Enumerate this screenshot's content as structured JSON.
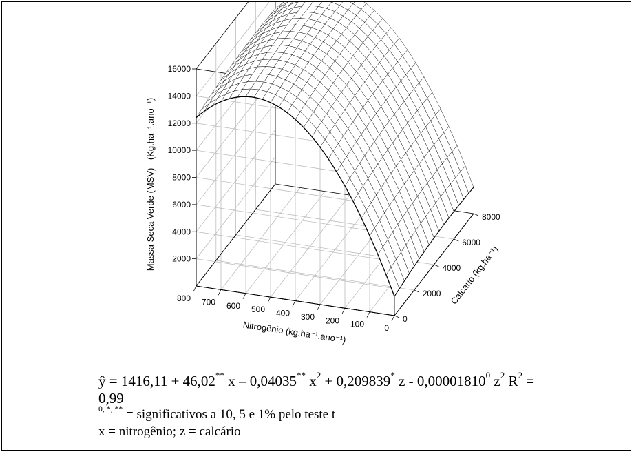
{
  "chart_data": {
    "type": "surface",
    "title": "",
    "zlabel": "Massa Seca Verde (MSV) - (Kg.ha⁻¹.ano⁻¹)",
    "xlabel": "Nitrogênio (kg.ha⁻¹.ano⁻¹)",
    "ylabel": "Calcário (kg.ha⁻¹)",
    "x_ticks": [
      "0",
      "100",
      "200",
      "300",
      "400",
      "500",
      "600",
      "700",
      "800"
    ],
    "y_ticks": [
      "0",
      "2000",
      "4000",
      "6000",
      "8000"
    ],
    "z_ticks": [
      "2000",
      "4000",
      "6000",
      "8000",
      "10000",
      "12000",
      "14000",
      "16000"
    ],
    "xlim": [
      0,
      800
    ],
    "ylim": [
      0,
      8000
    ],
    "zlim": [
      0,
      16000
    ],
    "grid": true,
    "model": {
      "intercept": 1416.11,
      "x": 46.02,
      "x2": -0.04035,
      "z": 0.209839,
      "z2": -1.81e-05
    }
  },
  "caption": {
    "eq_prefix": "ŷ = 1416,11 + 46,02",
    "sup_a": "**",
    "eq_x_term": " x – 0,04035",
    "sup_b": "**",
    "eq_x2": " x",
    "sup_c": "2",
    "eq_z_term": " + 0,209839",
    "sup_d": "*",
    "eq_z": " z - 0,00001810",
    "sup_e": "0",
    "eq_z2": " z",
    "sup_f": "2",
    "eq_r": " R",
    "sup_g": "2",
    "eq_eq": " =",
    "eq_r2_value": "0,99",
    "sig_sup": "0, *, **",
    "sig_text": " = significativos a 10, 5 e 1% pelo teste t",
    "vars_text": "x = nitrogênio; z = calcário"
  }
}
